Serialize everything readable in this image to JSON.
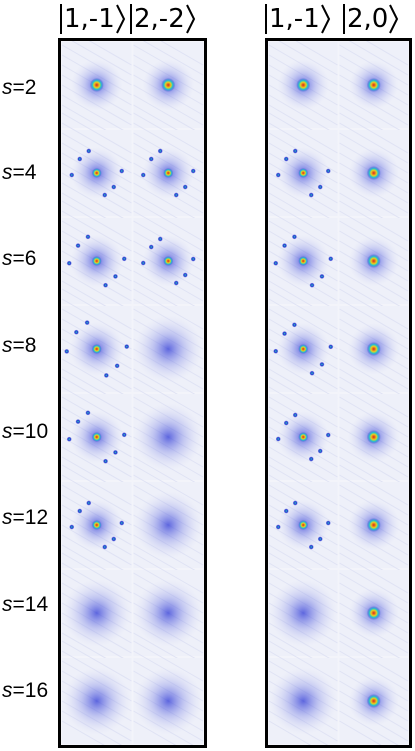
{
  "column_headers": {
    "left_col1": "1,-1",
    "left_col2": "2,-2",
    "right_col1": "1,-1",
    "right_col2": "2,0"
  },
  "row_labels": [
    {
      "var": "s",
      "value": "=2"
    },
    {
      "var": "s",
      "value": "=4"
    },
    {
      "var": "s",
      "value": "=6"
    },
    {
      "var": "s",
      "value": "=8"
    },
    {
      "var": "s",
      "value": "=10"
    },
    {
      "var": "s",
      "value": "=12"
    },
    {
      "var": "s",
      "value": "=14"
    },
    {
      "var": "s",
      "value": "=16"
    }
  ],
  "colors": {
    "background": "#f3f4fa",
    "frame": "#000000",
    "haze": "#3a46d8",
    "peak_core": "#e0201a",
    "peak_ring": "#22c9c9"
  }
}
